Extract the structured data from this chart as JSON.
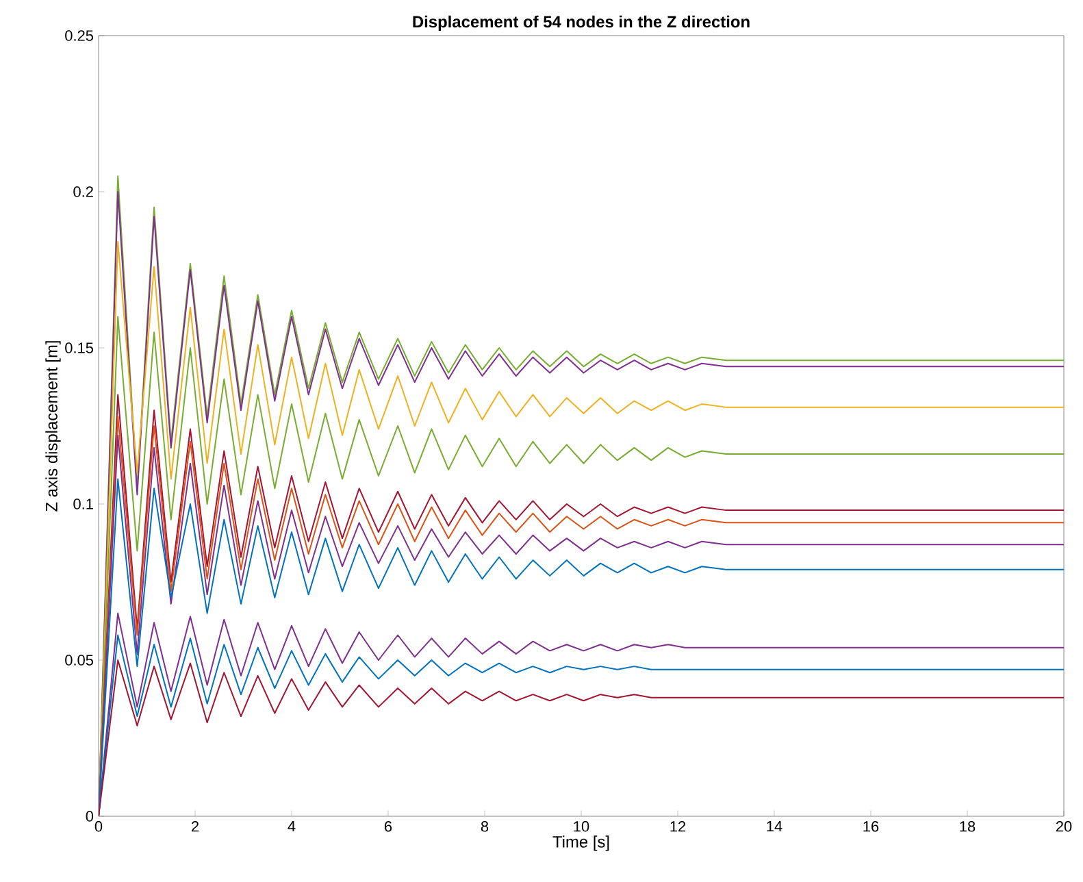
{
  "chart_data": {
    "type": "line",
    "title": "Displacement of 54 nodes in the Z direction",
    "xlabel": "Time [s]",
    "ylabel": "Z axis displacement [m]",
    "xlim": [
      0,
      20
    ],
    "ylim": [
      0,
      0.25
    ],
    "xticks": [
      0,
      2,
      4,
      6,
      8,
      10,
      12,
      14,
      16,
      18,
      20
    ],
    "yticks": [
      0,
      0.05,
      0.1,
      0.15,
      0.2,
      0.25
    ],
    "grid": false,
    "x": [
      0,
      0.4,
      0.8,
      1.15,
      1.5,
      1.9,
      2.25,
      2.6,
      2.95,
      3.3,
      3.65,
      4.0,
      4.35,
      4.7,
      5.05,
      5.4,
      5.8,
      6.2,
      6.55,
      6.9,
      7.25,
      7.6,
      7.95,
      8.3,
      8.65,
      9.0,
      9.35,
      9.7,
      10.05,
      10.4,
      10.75,
      11.1,
      11.45,
      11.8,
      12.15,
      12.5,
      13,
      14,
      16,
      18,
      20
    ],
    "series": [
      {
        "color": "#77ac30",
        "values": [
          0,
          0.205,
          0.105,
          0.195,
          0.12,
          0.177,
          0.128,
          0.173,
          0.132,
          0.167,
          0.135,
          0.162,
          0.137,
          0.158,
          0.139,
          0.155,
          0.14,
          0.153,
          0.141,
          0.152,
          0.142,
          0.151,
          0.143,
          0.15,
          0.143,
          0.149,
          0.144,
          0.149,
          0.144,
          0.148,
          0.145,
          0.148,
          0.145,
          0.147,
          0.145,
          0.147,
          0.146,
          0.146,
          0.146,
          0.146,
          0.146
        ]
      },
      {
        "color": "#7e2f8e",
        "values": [
          0,
          0.2,
          0.103,
          0.192,
          0.118,
          0.175,
          0.126,
          0.17,
          0.13,
          0.165,
          0.133,
          0.16,
          0.135,
          0.156,
          0.137,
          0.153,
          0.138,
          0.151,
          0.139,
          0.15,
          0.14,
          0.149,
          0.141,
          0.148,
          0.141,
          0.147,
          0.142,
          0.147,
          0.142,
          0.146,
          0.143,
          0.146,
          0.143,
          0.145,
          0.143,
          0.145,
          0.144,
          0.144,
          0.144,
          0.144,
          0.144
        ]
      },
      {
        "color": "#edb120",
        "values": [
          0,
          0.184,
          0.11,
          0.176,
          0.108,
          0.163,
          0.113,
          0.156,
          0.116,
          0.151,
          0.119,
          0.147,
          0.121,
          0.145,
          0.122,
          0.143,
          0.124,
          0.141,
          0.125,
          0.139,
          0.126,
          0.137,
          0.127,
          0.136,
          0.128,
          0.135,
          0.128,
          0.134,
          0.129,
          0.134,
          0.129,
          0.133,
          0.13,
          0.133,
          0.13,
          0.132,
          0.131,
          0.131,
          0.131,
          0.131,
          0.131
        ]
      },
      {
        "color": "#77ac30",
        "values": [
          0,
          0.16,
          0.085,
          0.155,
          0.095,
          0.15,
          0.1,
          0.14,
          0.103,
          0.135,
          0.105,
          0.132,
          0.107,
          0.129,
          0.108,
          0.127,
          0.109,
          0.125,
          0.11,
          0.124,
          0.111,
          0.122,
          0.112,
          0.121,
          0.112,
          0.12,
          0.113,
          0.119,
          0.113,
          0.119,
          0.114,
          0.118,
          0.114,
          0.118,
          0.115,
          0.117,
          0.116,
          0.116,
          0.116,
          0.116,
          0.116
        ]
      },
      {
        "color": "#a2142f",
        "values": [
          0,
          0.135,
          0.06,
          0.13,
          0.075,
          0.124,
          0.08,
          0.117,
          0.083,
          0.112,
          0.086,
          0.109,
          0.088,
          0.107,
          0.089,
          0.105,
          0.091,
          0.104,
          0.092,
          0.103,
          0.093,
          0.102,
          0.094,
          0.101,
          0.095,
          0.101,
          0.095,
          0.1,
          0.096,
          0.1,
          0.096,
          0.099,
          0.097,
          0.099,
          0.097,
          0.099,
          0.098,
          0.098,
          0.098,
          0.098,
          0.098
        ]
      },
      {
        "color": "#d95319",
        "values": [
          0,
          0.128,
          0.058,
          0.125,
          0.072,
          0.12,
          0.076,
          0.113,
          0.079,
          0.108,
          0.082,
          0.105,
          0.084,
          0.103,
          0.086,
          0.101,
          0.087,
          0.1,
          0.088,
          0.099,
          0.089,
          0.098,
          0.09,
          0.097,
          0.091,
          0.097,
          0.091,
          0.096,
          0.092,
          0.096,
          0.092,
          0.095,
          0.093,
          0.095,
          0.093,
          0.095,
          0.094,
          0.094,
          0.094,
          0.094,
          0.094
        ]
      },
      {
        "color": "#7e2f8e",
        "values": [
          0,
          0.122,
          0.052,
          0.118,
          0.068,
          0.113,
          0.071,
          0.106,
          0.074,
          0.101,
          0.076,
          0.098,
          0.078,
          0.096,
          0.08,
          0.094,
          0.081,
          0.093,
          0.082,
          0.092,
          0.083,
          0.091,
          0.084,
          0.09,
          0.084,
          0.09,
          0.085,
          0.089,
          0.085,
          0.089,
          0.086,
          0.088,
          0.086,
          0.088,
          0.086,
          0.088,
          0.087,
          0.087,
          0.087,
          0.087,
          0.087
        ]
      },
      {
        "color": "#0072bd",
        "values": [
          0,
          0.108,
          0.048,
          0.105,
          0.07,
          0.1,
          0.065,
          0.095,
          0.068,
          0.093,
          0.07,
          0.091,
          0.071,
          0.089,
          0.072,
          0.087,
          0.073,
          0.086,
          0.074,
          0.085,
          0.075,
          0.084,
          0.076,
          0.083,
          0.076,
          0.082,
          0.077,
          0.082,
          0.077,
          0.081,
          0.078,
          0.081,
          0.078,
          0.08,
          0.078,
          0.08,
          0.079,
          0.079,
          0.079,
          0.079,
          0.079
        ]
      },
      {
        "color": "#7e2f8e",
        "values": [
          0,
          0.065,
          0.035,
          0.062,
          0.04,
          0.064,
          0.042,
          0.063,
          0.045,
          0.062,
          0.047,
          0.061,
          0.048,
          0.06,
          0.049,
          0.059,
          0.05,
          0.058,
          0.051,
          0.057,
          0.051,
          0.057,
          0.052,
          0.056,
          0.052,
          0.056,
          0.053,
          0.055,
          0.053,
          0.055,
          0.053,
          0.055,
          0.054,
          0.055,
          0.054,
          0.054,
          0.054,
          0.054,
          0.054,
          0.054,
          0.054
        ]
      },
      {
        "color": "#0072bd",
        "values": [
          0,
          0.058,
          0.032,
          0.055,
          0.035,
          0.057,
          0.036,
          0.055,
          0.039,
          0.054,
          0.041,
          0.053,
          0.042,
          0.052,
          0.043,
          0.051,
          0.044,
          0.05,
          0.045,
          0.05,
          0.045,
          0.049,
          0.046,
          0.049,
          0.046,
          0.048,
          0.046,
          0.048,
          0.047,
          0.048,
          0.047,
          0.048,
          0.047,
          0.047,
          0.047,
          0.047,
          0.047,
          0.047,
          0.047,
          0.047,
          0.047
        ]
      },
      {
        "color": "#a2142f",
        "values": [
          0,
          0.05,
          0.029,
          0.048,
          0.031,
          0.049,
          0.03,
          0.046,
          0.032,
          0.045,
          0.033,
          0.044,
          0.034,
          0.043,
          0.035,
          0.042,
          0.035,
          0.041,
          0.036,
          0.041,
          0.036,
          0.04,
          0.037,
          0.04,
          0.037,
          0.039,
          0.037,
          0.039,
          0.037,
          0.039,
          0.038,
          0.039,
          0.038,
          0.038,
          0.038,
          0.038,
          0.038,
          0.038,
          0.038,
          0.038,
          0.038
        ]
      }
    ]
  }
}
